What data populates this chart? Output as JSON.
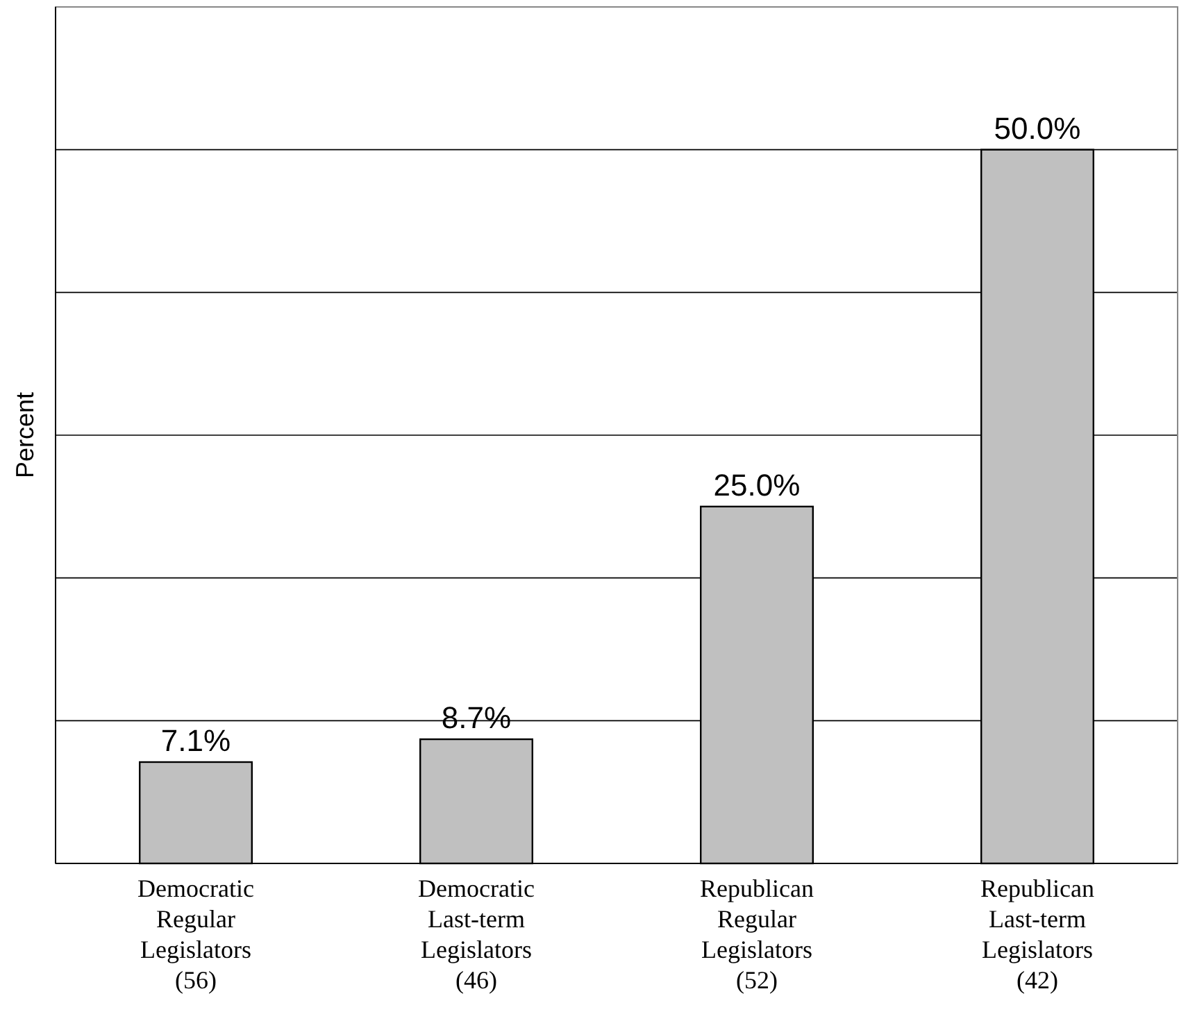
{
  "chart_data": {
    "type": "bar",
    "ylabel": "Percent",
    "categories": [
      "Democratic\nRegular\nLegislators\n(56)",
      "Democratic\nLast-term\nLegislators\n(46)",
      "Republican\nRegular\nLegislators\n(52)",
      "Republican\nLast-term\nLegislators\n(42)"
    ],
    "values": [
      7.1,
      8.7,
      25.0,
      50.0
    ],
    "value_labels": [
      "7.1%",
      "8.7%",
      "25.0%",
      "50.0%"
    ],
    "color": "#c0c0c0",
    "ylim": [
      0,
      60
    ],
    "yticks": [
      {
        "value": 0,
        "label": null
      },
      {
        "value": 10,
        "label": null
      },
      {
        "value": 20,
        "label": null
      },
      {
        "value": 30,
        "label": null
      },
      {
        "value": 40,
        "label": null
      },
      {
        "value": 50,
        "label": null
      },
      {
        "value": 60,
        "label": null
      }
    ],
    "grid": "y",
    "tick_labels": "x"
  }
}
